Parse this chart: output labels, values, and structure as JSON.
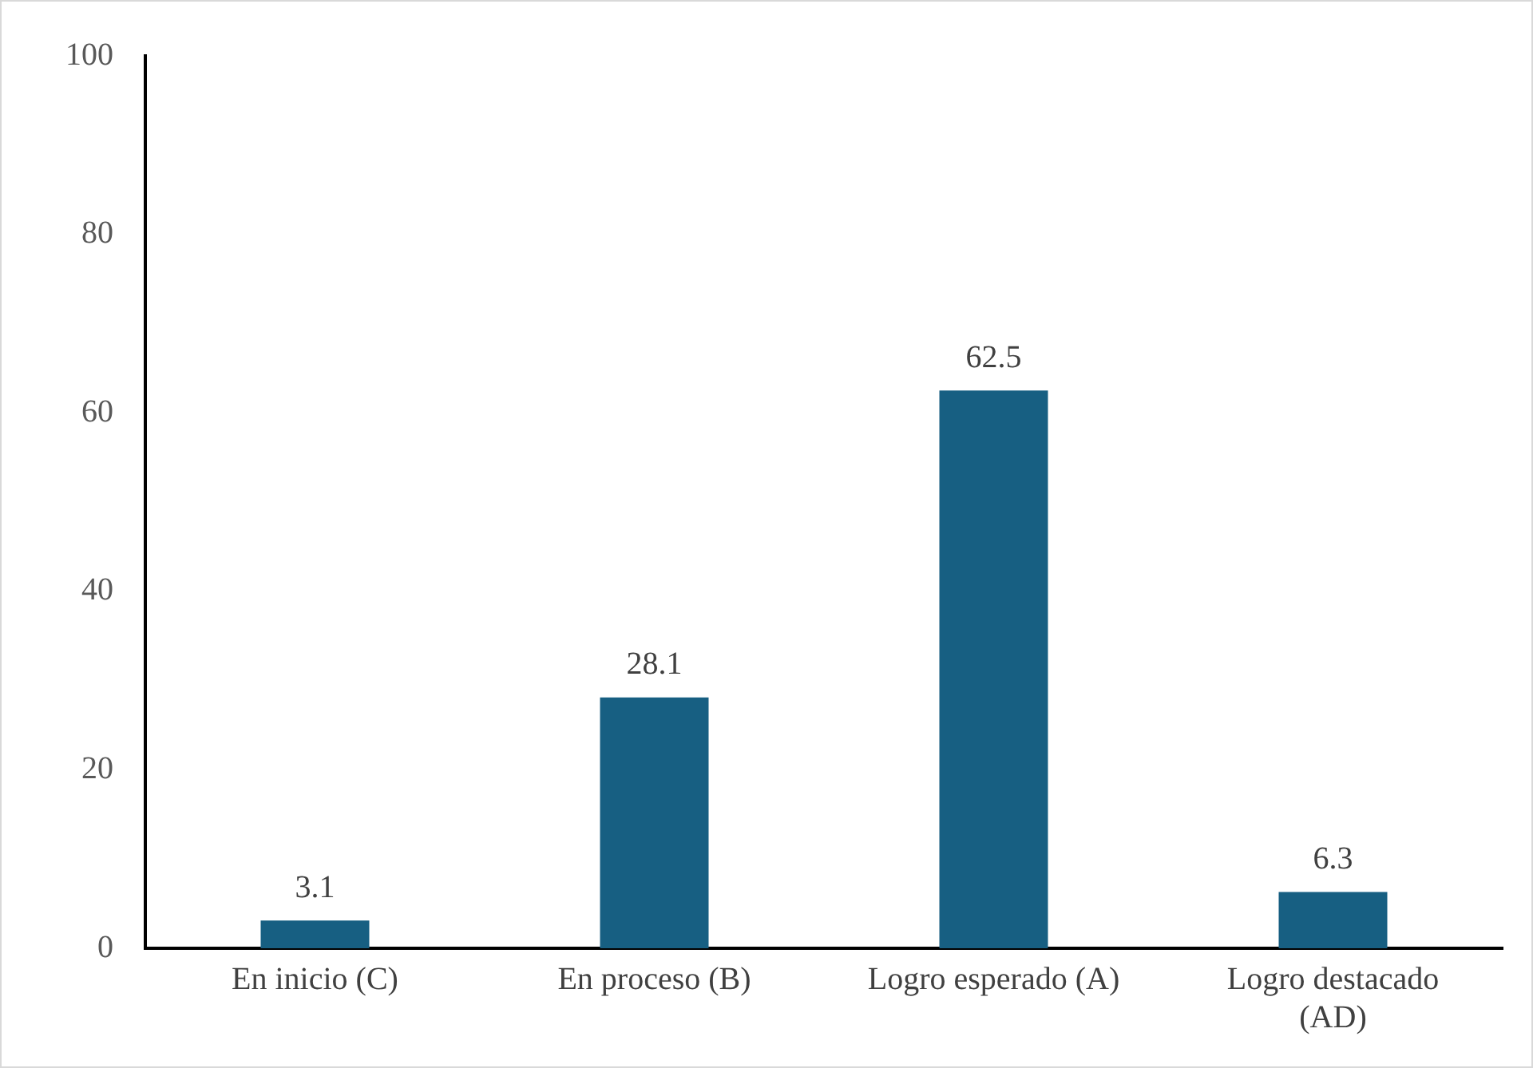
{
  "chart_data": {
    "type": "bar",
    "categories": [
      "En inicio (C)",
      "En proceso (B)",
      "Logro esperado (A)",
      "Logro destacado (AD)"
    ],
    "values": [
      3.1,
      28.1,
      62.5,
      6.3
    ],
    "color": "#175f82",
    "ylim": [
      0,
      100
    ],
    "yticks": [
      0,
      20,
      40,
      60,
      80,
      100
    ],
    "grid": false,
    "data_labels": true,
    "legend": false
  }
}
